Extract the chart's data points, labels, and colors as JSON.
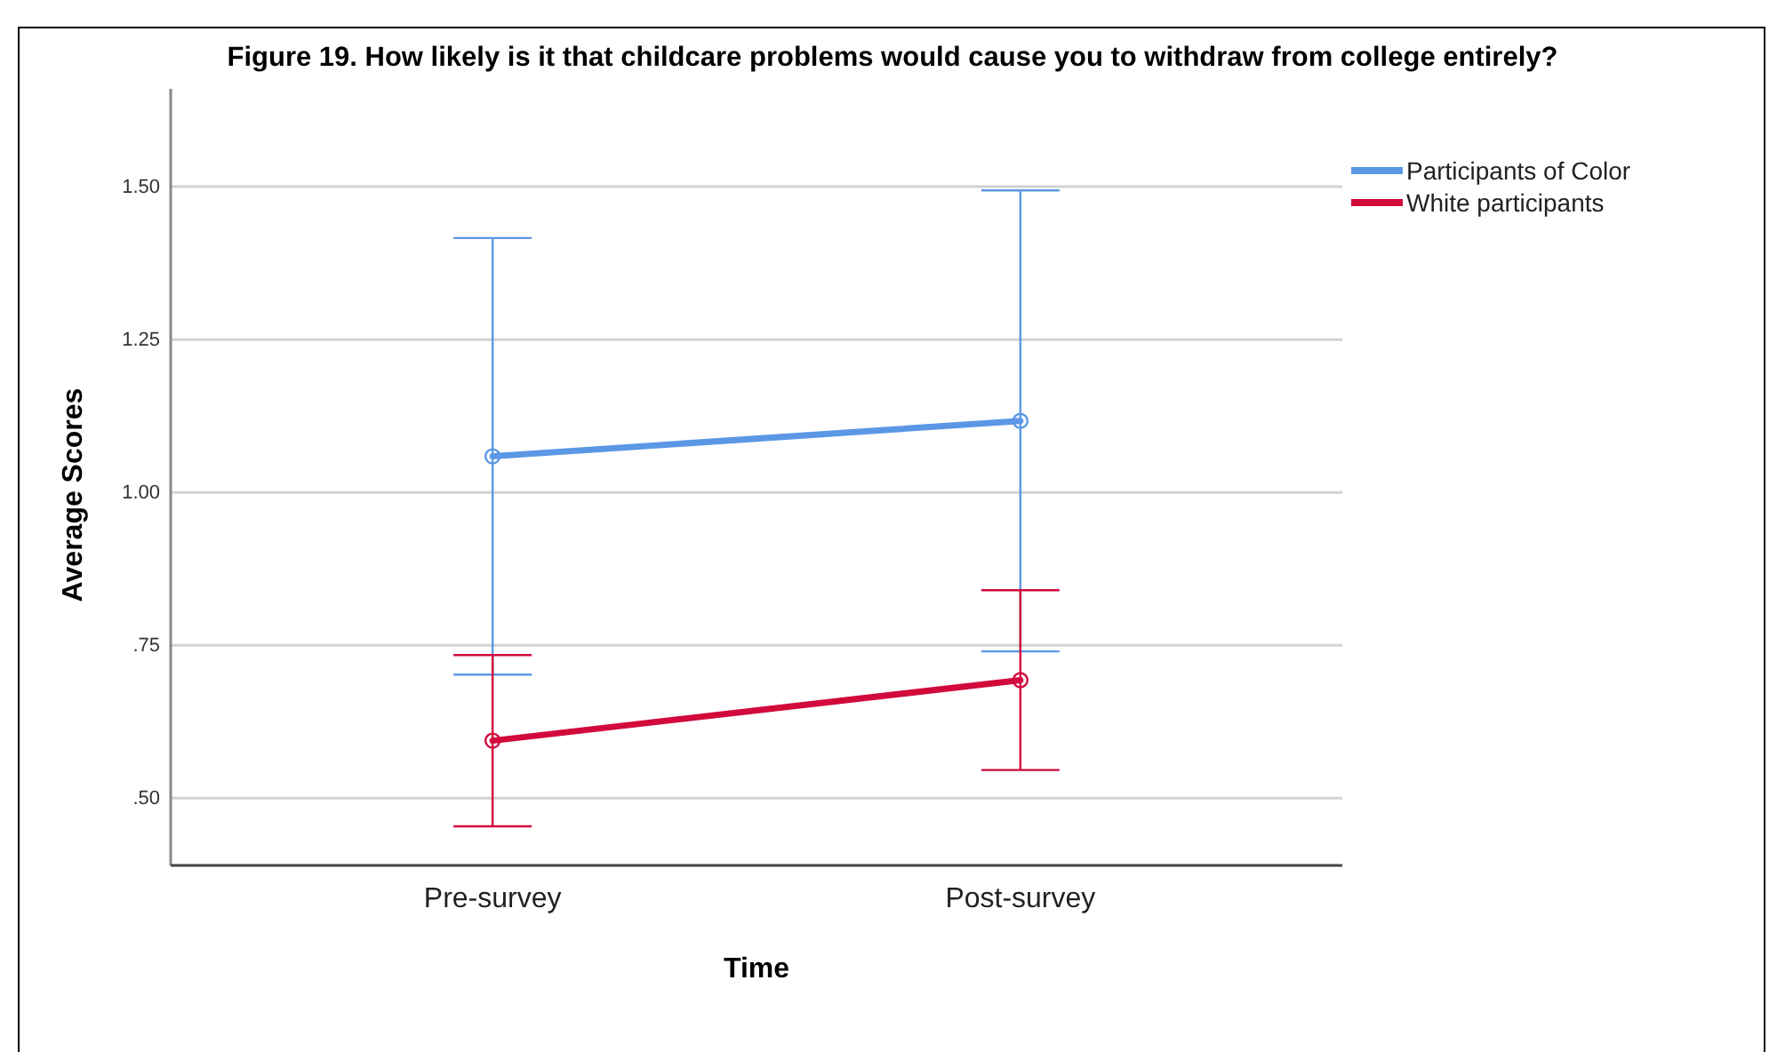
{
  "chart_data": {
    "type": "line",
    "title": "Figure 19. How likely is it that childcare problems would cause you to withdraw from college entirely?",
    "xlabel": "Time",
    "ylabel": "Average Scores",
    "categories": [
      "Pre-survey",
      "Post-survey"
    ],
    "series": [
      {
        "name": "Participants of Color",
        "color": "#5b97e5",
        "values": [
          1.059,
          1.117
        ],
        "errors": [
          0.357,
          0.377
        ]
      },
      {
        "name": "White participants",
        "color": "#d20a3c",
        "values": [
          0.594,
          0.693
        ],
        "errors": [
          0.14,
          0.147
        ]
      }
    ],
    "ylim": [
      0.39,
      1.66
    ],
    "yticks": [
      {
        "value": 0.5,
        "label": ".50"
      },
      {
        "value": 0.75,
        "label": ".75"
      },
      {
        "value": 1.0,
        "label": "1.00"
      },
      1.25,
      {
        "value": 1.5,
        "label": "1.50"
      }
    ],
    "grid": "y",
    "legend": "top right",
    "marker": "circle",
    "line_style": "solid"
  }
}
